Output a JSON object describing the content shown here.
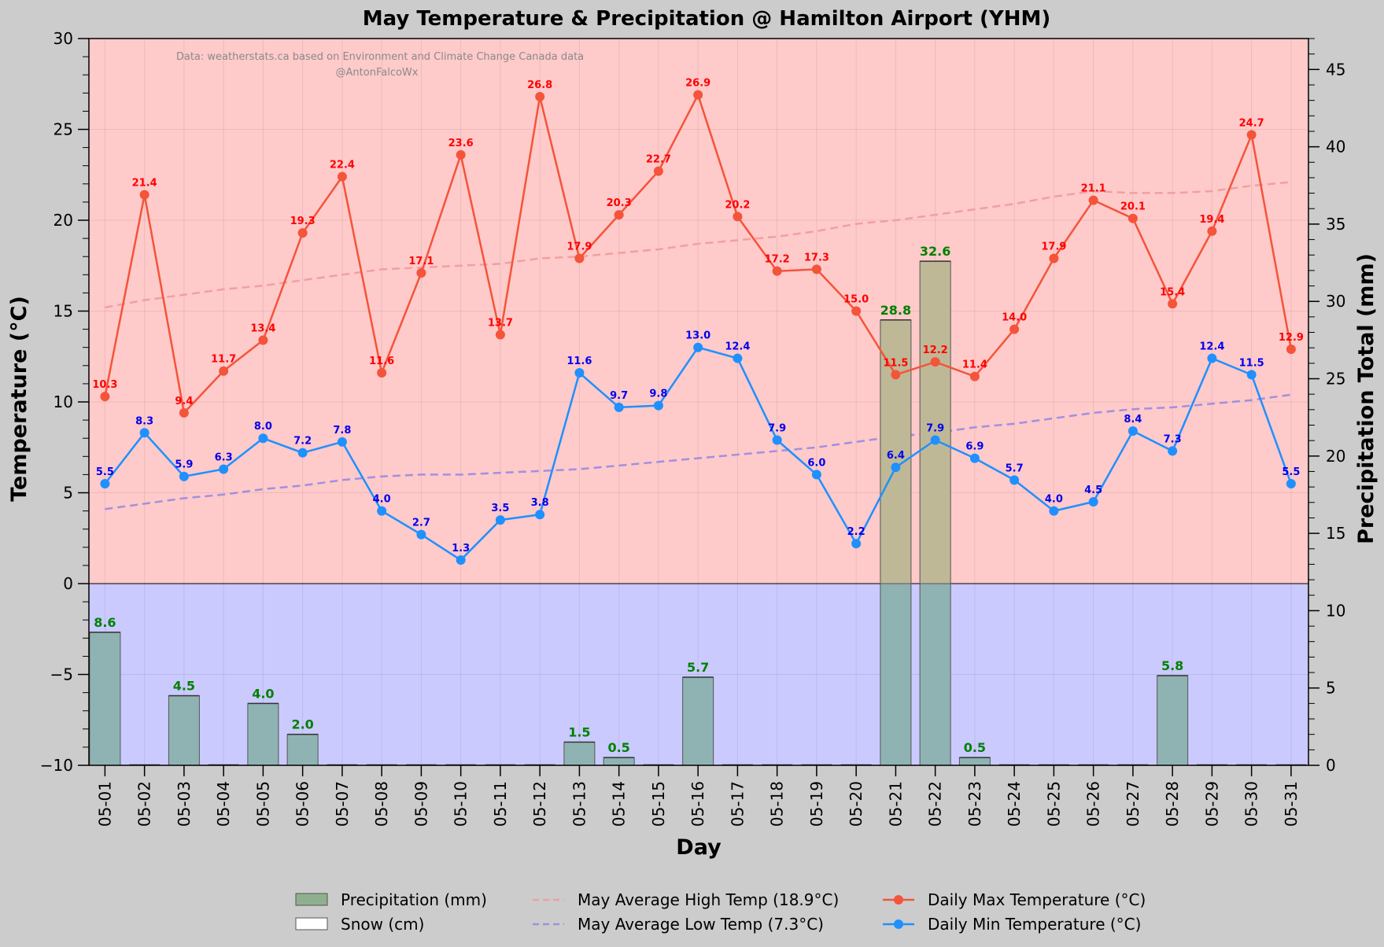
{
  "chart_data": {
    "type": "line",
    "title": "May Temperature & Precipitation @ Hamilton Airport (YHM)",
    "xlabel": "Day",
    "ylabel_left": "Temperature (°C)",
    "ylabel_right": "Precipitation Total (mm)",
    "ylim_left": [
      -10,
      30
    ],
    "ylim_right": [
      0,
      47
    ],
    "yticks_left": [
      -10,
      -5,
      0,
      5,
      10,
      15,
      20,
      25,
      30
    ],
    "yticks_right": [
      0,
      5,
      10,
      15,
      20,
      25,
      30,
      35,
      40,
      45
    ],
    "attribution": [
      "Data: weatherstats.ca based on Environment and Climate Change Canada data",
      "@AntonFalcoWx"
    ],
    "grid": true,
    "legend_position": "bottom-center",
    "categories": [
      "05-01",
      "05-02",
      "05-03",
      "05-04",
      "05-05",
      "05-06",
      "05-07",
      "05-08",
      "05-09",
      "05-10",
      "05-11",
      "05-12",
      "05-13",
      "05-14",
      "05-15",
      "05-16",
      "05-17",
      "05-18",
      "05-19",
      "05-20",
      "05-21",
      "05-22",
      "05-23",
      "05-24",
      "05-25",
      "05-26",
      "05-27",
      "05-28",
      "05-29",
      "05-30",
      "05-31"
    ],
    "series": [
      {
        "name": "Daily Max Temperature (°C)",
        "type": "line",
        "axis": "left",
        "color": "#f4543a",
        "label_color": "#ff0000",
        "values": [
          10.3,
          21.4,
          9.4,
          11.7,
          13.4,
          19.3,
          22.4,
          11.6,
          17.1,
          23.6,
          13.7,
          26.8,
          17.9,
          20.3,
          22.7,
          26.9,
          20.2,
          17.2,
          17.3,
          15.0,
          11.5,
          12.2,
          11.4,
          14.0,
          17.9,
          21.1,
          20.1,
          15.4,
          19.4,
          24.7,
          12.9
        ]
      },
      {
        "name": "Daily Min Temperature (°C)",
        "type": "line",
        "axis": "left",
        "color": "#1e90ff",
        "label_color": "#0000ee",
        "values": [
          5.5,
          8.3,
          5.9,
          6.3,
          8.0,
          7.2,
          7.8,
          4.0,
          2.7,
          1.3,
          3.5,
          3.8,
          11.6,
          9.7,
          9.8,
          13.0,
          12.4,
          7.9,
          6.0,
          2.2,
          6.4,
          7.9,
          6.9,
          5.7,
          4.0,
          4.5,
          8.4,
          7.3,
          12.4,
          11.5,
          5.5
        ]
      },
      {
        "name": "May Average High Temp (18.9°C)",
        "type": "line",
        "dashed": true,
        "axis": "left",
        "color": "#f0a0a0",
        "values": [
          15.2,
          15.6,
          15.9,
          16.2,
          16.4,
          16.7,
          17.0,
          17.3,
          17.4,
          17.5,
          17.6,
          17.9,
          18.0,
          18.2,
          18.4,
          18.7,
          18.9,
          19.1,
          19.4,
          19.8,
          20.0,
          20.3,
          20.6,
          20.9,
          21.3,
          21.6,
          21.5,
          21.5,
          21.6,
          21.9,
          22.1
        ]
      },
      {
        "name": "May Average Low Temp (7.3°C)",
        "type": "line",
        "dashed": true,
        "axis": "left",
        "color": "#a090e0",
        "values": [
          4.1,
          4.4,
          4.7,
          4.9,
          5.2,
          5.4,
          5.7,
          5.9,
          6.0,
          6.0,
          6.1,
          6.2,
          6.3,
          6.5,
          6.7,
          6.9,
          7.1,
          7.3,
          7.5,
          7.8,
          8.1,
          8.3,
          8.6,
          8.8,
          9.1,
          9.4,
          9.6,
          9.7,
          9.9,
          10.1,
          10.4
        ]
      },
      {
        "name": "Precipitation (mm)",
        "type": "bar",
        "axis": "right",
        "color": "#8fb08f",
        "label_color": "#008000",
        "values": [
          8.6,
          0,
          4.5,
          0,
          4.0,
          2.0,
          0,
          0,
          0,
          0,
          0,
          0,
          1.5,
          0.5,
          0,
          5.7,
          0,
          0,
          0,
          0,
          28.8,
          32.6,
          0.5,
          0,
          0,
          0,
          0,
          5.8,
          0,
          0,
          0
        ]
      },
      {
        "name": "Snow (cm)",
        "type": "bar",
        "axis": "right",
        "color": "#ffffff",
        "values": [
          0,
          0,
          0,
          0,
          0,
          0,
          0,
          0,
          0,
          0,
          0,
          0,
          0,
          0,
          0,
          0,
          0,
          0,
          0,
          0,
          0,
          0,
          0,
          0,
          0,
          0,
          0,
          0,
          0,
          0,
          0
        ]
      }
    ],
    "colors": {
      "background": "#cccccc",
      "warm_region": "#ffcaca",
      "cold_region": "#cacaff",
      "bar_fill": "#8fb3b3",
      "bar_fill_warm": "#bfb897"
    }
  }
}
